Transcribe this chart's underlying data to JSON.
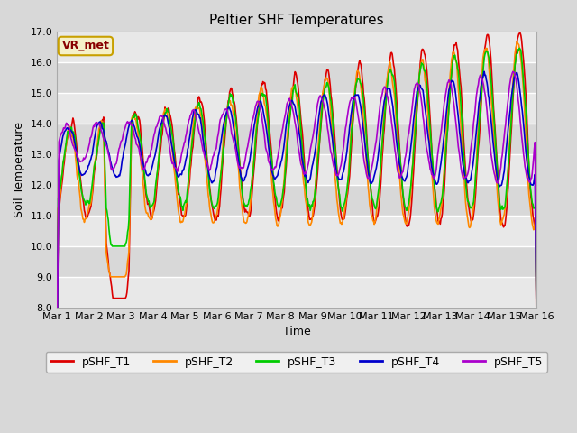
{
  "title": "Peltier SHF Temperatures",
  "xlabel": "Time",
  "ylabel": "Soil Temperature",
  "ylim": [
    8.0,
    17.0
  ],
  "yticks": [
    8.0,
    9.0,
    10.0,
    11.0,
    12.0,
    13.0,
    14.0,
    15.0,
    16.0,
    17.0
  ],
  "xtick_labels": [
    "Mar 1",
    "Mar 2",
    "Mar 3",
    "Mar 4",
    "Mar 5",
    "Mar 6",
    "Mar 7",
    "Mar 8",
    "Mar 9",
    "Mar 10",
    "Mar 11",
    "Mar 12",
    "Mar 13",
    "Mar 14",
    "Mar 15",
    "Mar 16"
  ],
  "n_days": 15,
  "pts_per_day": 48,
  "series_colors": [
    "#dd0000",
    "#ff8800",
    "#00cc00",
    "#0000cc",
    "#aa00cc"
  ],
  "series_names": [
    "pSHF_T1",
    "pSHF_T2",
    "pSHF_T3",
    "pSHF_T4",
    "pSHF_T5"
  ],
  "vr_met_label": "VR_met",
  "fig_facecolor": "#d8d8d8",
  "plot_bg_color": "#e8e8e8",
  "band_colors": [
    "#e0e0e0",
    "#d0d0d0"
  ],
  "grid_color": "#ffffff",
  "linewidth": 1.2,
  "annotation_box_facecolor": "#f5f0c8",
  "annotation_box_edgecolor": "#c8a000",
  "annotation_text_color": "#880000",
  "annotation_fontsize": 9,
  "title_fontsize": 11,
  "label_fontsize": 9,
  "tick_fontsize": 8,
  "legend_fontsize": 9
}
